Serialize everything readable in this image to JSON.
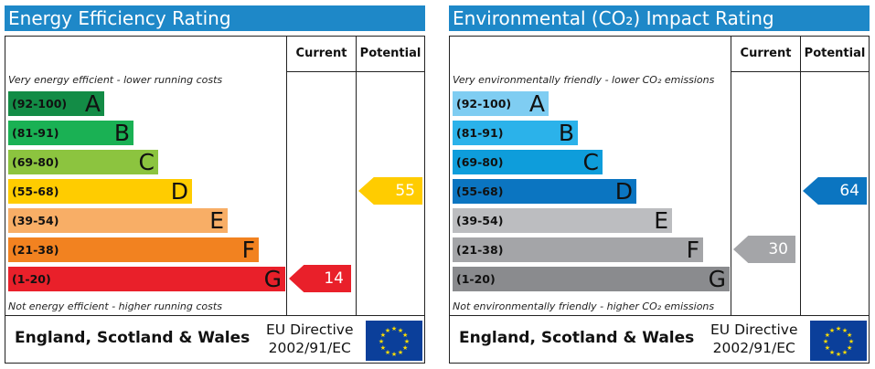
{
  "panels": [
    {
      "title": "Energy Efficiency Rating",
      "col_current": "Current",
      "col_potential": "Potential",
      "top_caption": "Very energy efficient - lower running costs",
      "bottom_caption": "Not energy efficient - higher running costs",
      "bands": [
        {
          "range": "(92-100)",
          "letter": "A",
          "color": "#138c46"
        },
        {
          "range": "(81-91)",
          "letter": "B",
          "color": "#1ab154"
        },
        {
          "range": "(69-80)",
          "letter": "C",
          "color": "#8cc43f"
        },
        {
          "range": "(55-68)",
          "letter": "D",
          "color": "#ffcc00"
        },
        {
          "range": "(39-54)",
          "letter": "E",
          "color": "#f8ae66"
        },
        {
          "range": "(21-38)",
          "letter": "F",
          "color": "#f28220"
        },
        {
          "range": "(1-20)",
          "letter": "G",
          "color": "#e9202a"
        }
      ],
      "current": {
        "value": "14",
        "band": "G",
        "color": "#e9202a"
      },
      "potential": {
        "value": "55",
        "band": "D",
        "color": "#ffcc00"
      },
      "footer_country": "England, Scotland & Wales",
      "directive_line1": "EU Directive",
      "directive_line2": "2002/91/EC"
    },
    {
      "title": "Environmental (CO₂) Impact Rating",
      "col_current": "Current",
      "col_potential": "Potential",
      "top_caption": "Very environmentally friendly - lower CO₂ emissions",
      "bottom_caption": "Not environmentally friendly - higher CO₂ emissions",
      "bands": [
        {
          "range": "(92-100)",
          "letter": "A",
          "color": "#7fcdf2"
        },
        {
          "range": "(81-91)",
          "letter": "B",
          "color": "#2bb2ea"
        },
        {
          "range": "(69-80)",
          "letter": "C",
          "color": "#0e9ddb"
        },
        {
          "range": "(55-68)",
          "letter": "D",
          "color": "#0b75c1"
        },
        {
          "range": "(39-54)",
          "letter": "E",
          "color": "#bcbdc0"
        },
        {
          "range": "(21-38)",
          "letter": "F",
          "color": "#a4a5a8"
        },
        {
          "range": "(1-20)",
          "letter": "G",
          "color": "#8a8b8e"
        }
      ],
      "current": {
        "value": "30",
        "band": "F",
        "color": "#a4a5a8"
      },
      "potential": {
        "value": "64",
        "band": "D",
        "color": "#0b75c1"
      },
      "footer_country": "England, Scotland & Wales",
      "directive_line1": "EU Directive",
      "directive_line2": "2002/91/EC"
    }
  ]
}
